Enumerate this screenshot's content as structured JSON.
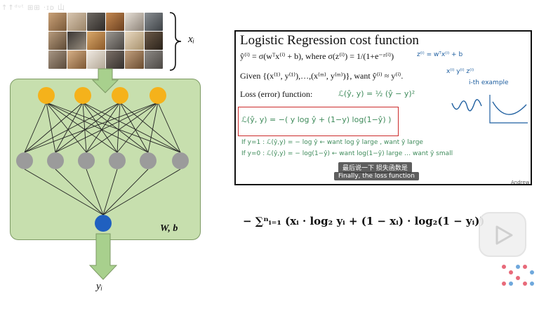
{
  "watermark": {
    "text": "↑↑ᵈᵘᵗ ⊞⊞ ·ɪᴅ 山",
    "logo_icon": "bilibili-tv-icon"
  },
  "diagram": {
    "input_label": "xᵢ",
    "weights_label": "W, b",
    "output_label": "yᵢ"
  },
  "slide": {
    "title": "Logistic Regression cost function",
    "line1": "ŷ⁽ⁱ⁾ = σ(wᵀx⁽ⁱ⁾ + b), where σ(z⁽ⁱ⁾) = 1/(1+e⁻ᶻ⁽ⁱ⁾)",
    "line2": "Given {(x⁽¹⁾, y⁽¹⁾),…,(x⁽ᵐ⁾, y⁽ᵐ⁾)}, want ŷ⁽ⁱ⁾ ≈ y⁽ⁱ⁾.",
    "line3": "Loss (error) function:",
    "hw_squared": "ℒ(ŷ, y) = ½ (ŷ − y)²",
    "hw_loss": "ℒ(ŷ, y) = −( y log ŷ + (1−y) log(1−ŷ) )",
    "hw_if1": "If  y=1 :  ℒ(ŷ,y) = − log ŷ  ←  want log ŷ large ,  want ŷ large",
    "hw_if0": "If  y=0 :  ℒ(ŷ,y) = − log(1−ŷ)  ←  want log(1−ŷ) large …  want ŷ small",
    "hw_z": "z⁽ⁱ⁾ = wᵀx⁽ⁱ⁾ + b",
    "hw_vars": "x⁽ⁱ⁾  y⁽ⁱ⁾  z⁽ⁱ⁾",
    "hw_example": "i-th example",
    "subtitle_zh": "最后说一下 损失函数是",
    "subtitle_en": "Finally, the loss function",
    "author": "Andrew"
  },
  "formula": {
    "text": "− ∑ⁿᵢ₌₁ (xᵢ · log₂ yᵢ + (1 − xᵢ) · log₂(1 − yᵢ))"
  },
  "colors": {
    "network_bg": "#c7dfae",
    "input_nodes": "#f5b21b",
    "hidden_nodes": "#9b9b9b",
    "output_node": "#2060c0",
    "arrow_fill": "#a8d08d",
    "red_box": "#cc2b2b",
    "handwriting_green": "#3f8b5b",
    "handwriting_blue": "#1f5fa0"
  },
  "controls": {
    "play_icon": "play-icon"
  }
}
